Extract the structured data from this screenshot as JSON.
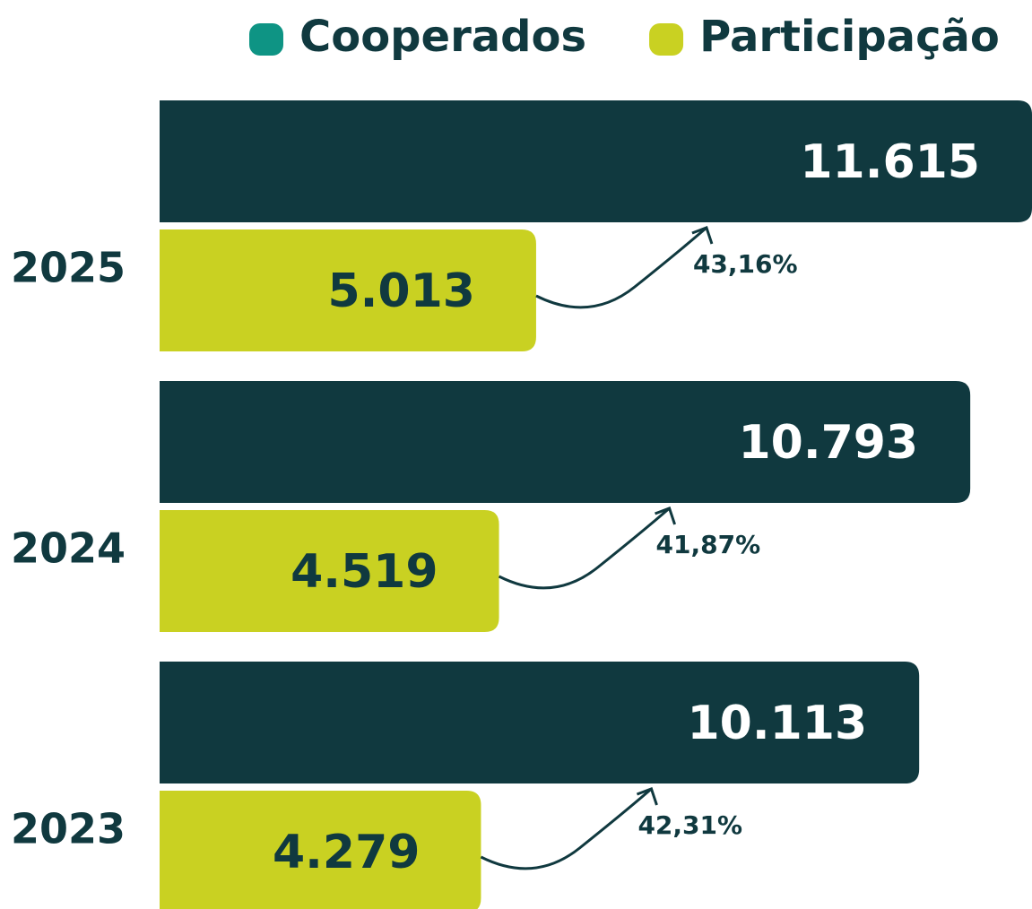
{
  "chart_data": {
    "type": "bar",
    "orientation": "horizontal",
    "categories": [
      "2025",
      "2024",
      "2023"
    ],
    "series": [
      {
        "name": "Cooperados",
        "color": "#10393f",
        "legend_color": "#0e9484",
        "label_color": "#ffffff",
        "values": [
          11615,
          10793,
          10113
        ],
        "value_labels": [
          "11.615",
          "10.793",
          "10.113"
        ]
      },
      {
        "name": "Participação",
        "color": "#c9d122",
        "legend_color": "#c9d122",
        "label_color": "#10393f",
        "values": [
          5013,
          4519,
          4279
        ],
        "value_labels": [
          "5.013",
          "4.519",
          "4.279"
        ]
      }
    ],
    "annotations": [
      "43,16%",
      "41,87%",
      "42,31%"
    ],
    "annotation_color": "#10393f"
  }
}
